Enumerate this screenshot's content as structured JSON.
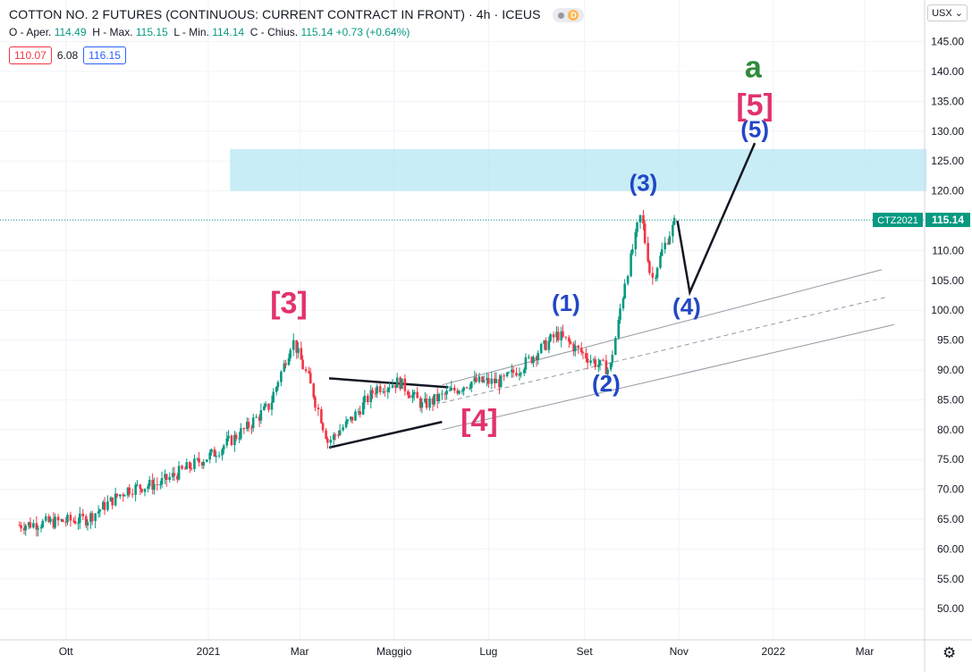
{
  "header": {
    "title": "COTTON NO. 2 FUTURES (CONTINUOUS: CURRENT CONTRACT IN FRONT) · 4h · ICEUS",
    "badge": "D",
    "ohlc": {
      "open_label": "O - Aper.",
      "open": "114.49",
      "high_label": "H - Max.",
      "high": "115.15",
      "low_label": "L - Min.",
      "low": "114.14",
      "close_label": "C - Chius.",
      "close": "115.14",
      "change": "+0.73 (+0.64%)"
    },
    "bid": "110.07",
    "spread": "6.08",
    "ask": "116.15",
    "currency": "USX"
  },
  "colors": {
    "up": "#089981",
    "down": "#f23645",
    "wave_major": "#e2336b",
    "wave_minor": "#2247c5",
    "wave_a": "#2e8b3a",
    "zone": "#b2e6f2",
    "price_line": "#089981"
  },
  "chart_data": {
    "type": "candlestick",
    "symbol": "CTZ2021",
    "last_price": 115.14,
    "ylim": [
      46,
      148
    ],
    "y_ticks": [
      50,
      55,
      60,
      65,
      70,
      75,
      80,
      85,
      90,
      95,
      100,
      105,
      110,
      115,
      120,
      125,
      130,
      135,
      140,
      145
    ],
    "x_ticks": [
      "Ott",
      "2021",
      "Mar",
      "Maggio",
      "Lug",
      "Set",
      "Nov",
      "2022",
      "Mar"
    ],
    "price_path": [
      {
        "x": "2020-09-01",
        "y": 64
      },
      {
        "x": "2020-10-15",
        "y": 65
      },
      {
        "x": "2020-11-10",
        "y": 70
      },
      {
        "x": "2020-12-01",
        "y": 71
      },
      {
        "x": "2021-01-05",
        "y": 76
      },
      {
        "x": "2021-01-25",
        "y": 80
      },
      {
        "x": "2021-02-10",
        "y": 84
      },
      {
        "x": "2021-02-25",
        "y": 95
      },
      {
        "x": "2021-03-08",
        "y": 88
      },
      {
        "x": "2021-03-20",
        "y": 78
      },
      {
        "x": "2021-04-05",
        "y": 82
      },
      {
        "x": "2021-04-20",
        "y": 87
      },
      {
        "x": "2021-05-05",
        "y": 88
      },
      {
        "x": "2021-05-20",
        "y": 84
      },
      {
        "x": "2021-06-05",
        "y": 86
      },
      {
        "x": "2021-06-20",
        "y": 88
      },
      {
        "x": "2021-07-10",
        "y": 88
      },
      {
        "x": "2021-07-25",
        "y": 91
      },
      {
        "x": "2021-08-15",
        "y": 96
      },
      {
        "x": "2021-08-30",
        "y": 93
      },
      {
        "x": "2021-09-10",
        "y": 91
      },
      {
        "x": "2021-09-18",
        "y": 90
      },
      {
        "x": "2021-09-28",
        "y": 105
      },
      {
        "x": "2021-10-08",
        "y": 116
      },
      {
        "x": "2021-10-15",
        "y": 105
      },
      {
        "x": "2021-10-25",
        "y": 112
      },
      {
        "x": "2021-10-31",
        "y": 115.14
      }
    ],
    "target_zone": {
      "x0": "2021-01-15",
      "x1": "2022-04-10",
      "y0": 120,
      "y1": 127
    },
    "projection": [
      {
        "x": "2021-10-31",
        "y": 115
      },
      {
        "x": "2021-11-08",
        "y": 103
      },
      {
        "x": "2021-12-20",
        "y": 128
      }
    ],
    "channel": [
      {
        "x0": "2021-06-01",
        "y0": 87.5,
        "x1": "2022-03-12",
        "y1": 106.8,
        "style": "solid"
      },
      {
        "x0": "2021-06-01",
        "y0": 84.5,
        "x1": "2022-03-15",
        "y1": 102.2,
        "style": "dashed"
      },
      {
        "x0": "2021-06-01",
        "y0": 80.0,
        "x1": "2022-03-20",
        "y1": 97.6,
        "style": "solid"
      }
    ],
    "triangle": [
      {
        "x0": "2021-03-20",
        "y0": 88.6,
        "x1": "2021-06-05",
        "y1": 87.1
      },
      {
        "x0": "2021-03-20",
        "y0": 77.0,
        "x1": "2021-06-01",
        "y1": 81.3
      }
    ],
    "wave_labels": [
      {
        "text": "[3]",
        "x": "2021-02-22",
        "y": 99.5,
        "kind": "major"
      },
      {
        "text": "[4]",
        "x": "2021-06-25",
        "y": 79.8,
        "kind": "major"
      },
      {
        "text": "(1)",
        "x": "2021-08-20",
        "y": 99.9,
        "kind": "minor"
      },
      {
        "text": "(2)",
        "x": "2021-09-15",
        "y": 86.4,
        "kind": "minor"
      },
      {
        "text": "(3)",
        "x": "2021-10-09",
        "y": 120.0,
        "kind": "minor"
      },
      {
        "text": "(4)",
        "x": "2021-11-06",
        "y": 99.3,
        "kind": "minor"
      },
      {
        "text": "(5)",
        "x": "2021-12-20",
        "y": 129.0,
        "kind": "minor"
      },
      {
        "text": "[5]",
        "x": "2021-12-20",
        "y": 132.7,
        "kind": "major"
      },
      {
        "text": "a",
        "x": "2021-12-19",
        "y": 139.0,
        "kind": "a"
      }
    ]
  }
}
